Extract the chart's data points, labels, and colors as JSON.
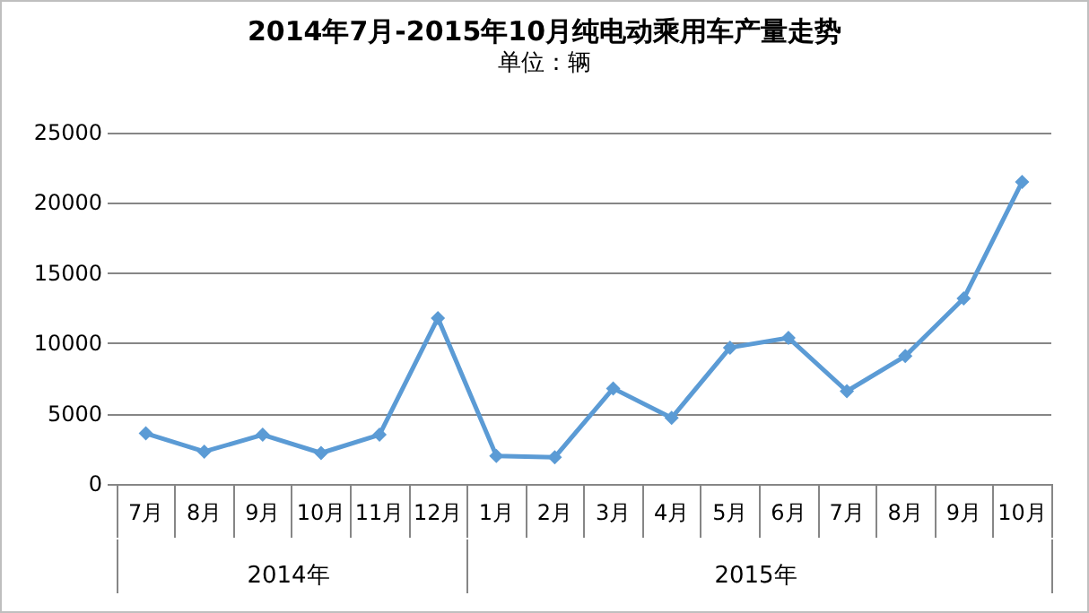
{
  "chart_data": {
    "type": "line",
    "title": "2014年7月-2015年10月纯电动乘用车产量走势",
    "subtitle": "单位：辆",
    "categories": [
      "7月",
      "8月",
      "9月",
      "10月",
      "11月",
      "12月",
      "1月",
      "2月",
      "3月",
      "4月",
      "5月",
      "6月",
      "7月",
      "8月",
      "9月",
      "10月"
    ],
    "series": [
      {
        "color": "#5b9bd5",
        "values": [
          3600,
          2300,
          3500,
          2200,
          3500,
          11800,
          2000,
          1900,
          6800,
          4700,
          9700,
          10400,
          6600,
          9100,
          13200,
          21500
        ]
      }
    ],
    "annotations": [
      "2014年",
      "2015年"
    ],
    "ylim": [
      0,
      25000
    ],
    "yticks": [
      0,
      5000,
      10000,
      15000,
      20000,
      25000
    ],
    "grid": "y",
    "marker": "diamond",
    "line_style": "solid"
  }
}
